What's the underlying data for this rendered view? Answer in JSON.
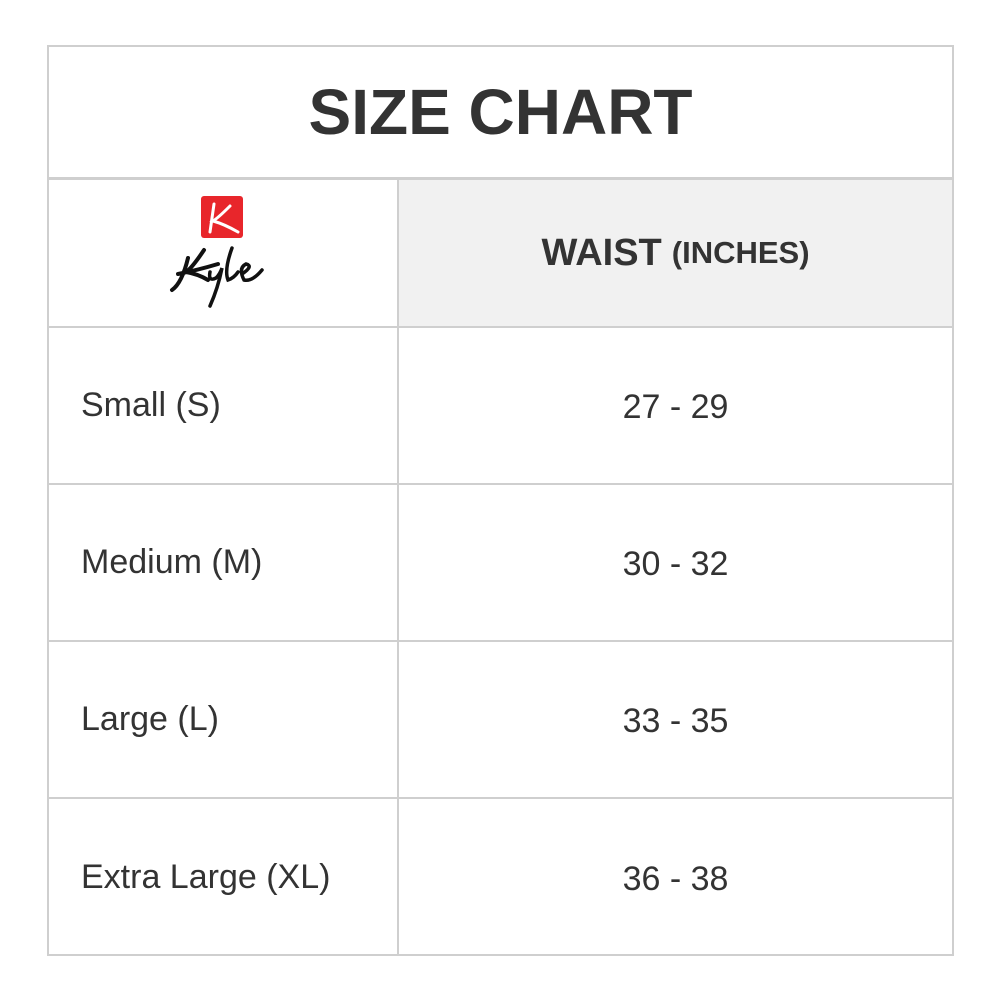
{
  "title": "SIZE CHART",
  "logo": {
    "text": "Kyle",
    "brand_color": "#e8262b"
  },
  "header": {
    "measure": "WAIST",
    "unit": "(INCHES)"
  },
  "rows": [
    {
      "size": "Small (S)",
      "waist": "27 - 29"
    },
    {
      "size": "Medium (M)",
      "waist": "30 - 32"
    },
    {
      "size": "Large (L)",
      "waist": "33 - 35"
    },
    {
      "size": "Extra Large (XL)",
      "waist": "36 - 38"
    }
  ]
}
